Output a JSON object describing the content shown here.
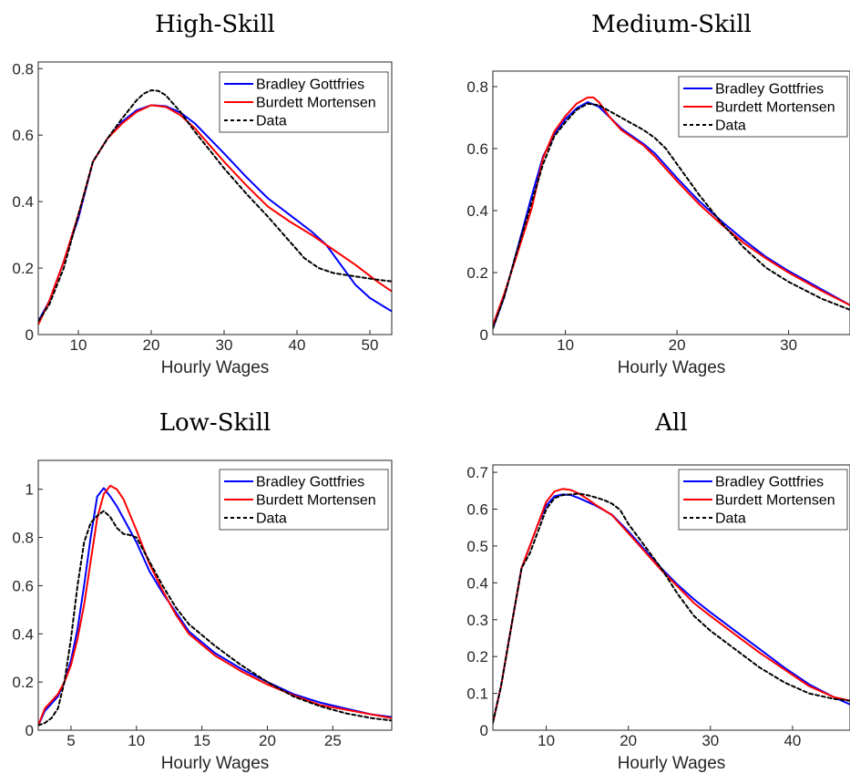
{
  "chart_data": [
    {
      "type": "line",
      "title": "High-Skill",
      "xlabel": "Hourly Wages",
      "ylabel": "",
      "xlim": [
        4.5,
        53
      ],
      "ylim": [
        0,
        0.82
      ],
      "xticks": [
        10,
        20,
        30,
        40,
        50
      ],
      "yticks": [
        0,
        0.2,
        0.4,
        0.6,
        0.8
      ],
      "xtick_labels": [
        "10",
        "20",
        "30",
        "40",
        "50"
      ],
      "ytick_labels": [
        "0",
        "0.2",
        "0.4",
        "0.6",
        "0.8"
      ],
      "legend_position": "top-right",
      "series": [
        {
          "name": "Bradley Gottfries",
          "color": "#0000ff",
          "style": "solid",
          "x": [
            4.5,
            6,
            8,
            10,
            12,
            14,
            16,
            18,
            20,
            22,
            24,
            26,
            28,
            30,
            33,
            36,
            39,
            42,
            44,
            46,
            48,
            50,
            53
          ],
          "y": [
            0.04,
            0.1,
            0.22,
            0.35,
            0.52,
            0.59,
            0.64,
            0.675,
            0.69,
            0.687,
            0.668,
            0.635,
            0.59,
            0.545,
            0.475,
            0.41,
            0.36,
            0.31,
            0.27,
            0.21,
            0.15,
            0.11,
            0.07
          ]
        },
        {
          "name": "Burdett Mortensen",
          "color": "#ff0000",
          "style": "solid",
          "x": [
            4.5,
            6,
            8,
            10,
            12,
            14,
            16,
            18,
            20,
            22,
            24,
            26,
            28,
            30,
            33,
            36,
            39,
            42,
            45,
            48,
            51,
            53
          ],
          "y": [
            0.03,
            0.1,
            0.22,
            0.36,
            0.52,
            0.59,
            0.635,
            0.67,
            0.69,
            0.685,
            0.66,
            0.62,
            0.57,
            0.52,
            0.45,
            0.385,
            0.34,
            0.3,
            0.255,
            0.21,
            0.16,
            0.13
          ]
        },
        {
          "name": "Data",
          "color": "#000000",
          "style": "dashed",
          "x": [
            4.5,
            6,
            8,
            10,
            12,
            14,
            16,
            18,
            19,
            20,
            21,
            22,
            24,
            26,
            28,
            30,
            33,
            36,
            39,
            41,
            43,
            45,
            48,
            51,
            53
          ],
          "y": [
            0.04,
            0.09,
            0.2,
            0.36,
            0.52,
            0.59,
            0.65,
            0.705,
            0.725,
            0.735,
            0.733,
            0.72,
            0.67,
            0.61,
            0.555,
            0.5,
            0.425,
            0.355,
            0.28,
            0.23,
            0.2,
            0.185,
            0.175,
            0.165,
            0.16
          ]
        }
      ]
    },
    {
      "type": "line",
      "title": "Medium-Skill",
      "xlabel": "Hourly Wages",
      "ylabel": "",
      "xlim": [
        3.5,
        35.5
      ],
      "ylim": [
        0,
        0.85
      ],
      "xticks": [
        10,
        20,
        30
      ],
      "yticks": [
        0,
        0.2,
        0.4,
        0.6,
        0.8
      ],
      "xtick_labels": [
        "10",
        "20",
        "30"
      ],
      "ytick_labels": [
        "0",
        "0.2",
        "0.4",
        "0.6",
        "0.8"
      ],
      "legend_position": "top-right",
      "series": [
        {
          "name": "Bradley Gottfries",
          "color": "#0000ff",
          "style": "solid",
          "x": [
            3.5,
            4.5,
            5.5,
            7,
            8,
            9,
            10,
            11,
            12,
            13,
            14,
            15,
            16,
            17,
            18,
            20,
            22,
            24,
            26,
            28,
            30,
            33,
            35.5
          ],
          "y": [
            0.02,
            0.12,
            0.25,
            0.45,
            0.575,
            0.645,
            0.695,
            0.73,
            0.75,
            0.735,
            0.7,
            0.665,
            0.64,
            0.615,
            0.585,
            0.505,
            0.43,
            0.365,
            0.305,
            0.25,
            0.205,
            0.145,
            0.095
          ]
        },
        {
          "name": "Burdett Mortensen",
          "color": "#ff0000",
          "style": "solid",
          "x": [
            3.5,
            4.5,
            5.5,
            7,
            8,
            9,
            10,
            11,
            12,
            12.5,
            13,
            14,
            15,
            16,
            17,
            18,
            20,
            22,
            24,
            26,
            28,
            30,
            33,
            35.5
          ],
          "y": [
            0.03,
            0.13,
            0.24,
            0.41,
            0.57,
            0.655,
            0.705,
            0.745,
            0.765,
            0.765,
            0.75,
            0.7,
            0.66,
            0.635,
            0.61,
            0.575,
            0.495,
            0.42,
            0.355,
            0.295,
            0.245,
            0.2,
            0.14,
            0.095
          ]
        },
        {
          "name": "Data",
          "color": "#000000",
          "style": "dashed",
          "x": [
            3.5,
            4.5,
            5.5,
            7,
            8,
            9,
            10,
            11,
            12,
            13,
            14,
            15,
            16,
            17,
            18,
            19,
            20,
            22,
            24,
            26,
            28,
            30,
            33,
            35.5
          ],
          "y": [
            0.02,
            0.12,
            0.25,
            0.43,
            0.55,
            0.64,
            0.685,
            0.725,
            0.745,
            0.74,
            0.72,
            0.7,
            0.68,
            0.66,
            0.635,
            0.6,
            0.55,
            0.45,
            0.36,
            0.28,
            0.215,
            0.17,
            0.115,
            0.08
          ]
        }
      ]
    },
    {
      "type": "line",
      "title": "Low-Skill",
      "xlabel": "Hourly Wages",
      "ylabel": "",
      "xlim": [
        2.5,
        29.5
      ],
      "ylim": [
        0,
        1.12
      ],
      "xticks": [
        5,
        10,
        15,
        20,
        25
      ],
      "yticks": [
        0,
        0.2,
        0.4,
        0.6,
        0.8,
        1
      ],
      "xtick_labels": [
        "5",
        "10",
        "15",
        "20",
        "25"
      ],
      "ytick_labels": [
        "0",
        "0.2",
        "0.4",
        "0.6",
        "0.8",
        "1"
      ],
      "legend_position": "top-right",
      "series": [
        {
          "name": "Bradley Gottfries",
          "color": "#0000ff",
          "style": "solid",
          "x": [
            2.5,
            3,
            3.5,
            4,
            4.5,
            5,
            5.5,
            6,
            6.5,
            7,
            7.5,
            8,
            8.5,
            9,
            10,
            11,
            12,
            13,
            14,
            16,
            18,
            20,
            22,
            24,
            26,
            28,
            29.5
          ],
          "y": [
            0.02,
            0.08,
            0.11,
            0.14,
            0.2,
            0.29,
            0.42,
            0.6,
            0.8,
            0.97,
            1.005,
            0.97,
            0.93,
            0.88,
            0.78,
            0.66,
            0.57,
            0.49,
            0.41,
            0.32,
            0.255,
            0.2,
            0.15,
            0.115,
            0.09,
            0.065,
            0.055
          ]
        },
        {
          "name": "Burdett Mortensen",
          "color": "#ff0000",
          "style": "solid",
          "x": [
            2.5,
            3,
            3.5,
            4,
            4.5,
            5,
            5.5,
            6,
            6.5,
            7,
            7.5,
            8,
            8.5,
            9,
            10,
            11,
            12,
            13,
            14,
            16,
            18,
            20,
            22,
            24,
            26,
            28,
            29.5
          ],
          "y": [
            0.02,
            0.09,
            0.12,
            0.15,
            0.2,
            0.27,
            0.38,
            0.52,
            0.7,
            0.88,
            0.98,
            1.015,
            1.0,
            0.96,
            0.83,
            0.69,
            0.58,
            0.48,
            0.4,
            0.31,
            0.245,
            0.19,
            0.145,
            0.105,
            0.085,
            0.065,
            0.05
          ]
        },
        {
          "name": "Data",
          "color": "#000000",
          "style": "dashed",
          "x": [
            2.5,
            3,
            3.5,
            4,
            4.5,
            5,
            5.5,
            6,
            6.5,
            7,
            7.5,
            8,
            8.5,
            9,
            9.5,
            10,
            11,
            12,
            13,
            14,
            16,
            18,
            20,
            22,
            24,
            26,
            28,
            29.5
          ],
          "y": [
            0.02,
            0.03,
            0.05,
            0.09,
            0.2,
            0.38,
            0.6,
            0.78,
            0.86,
            0.89,
            0.91,
            0.885,
            0.84,
            0.815,
            0.81,
            0.8,
            0.7,
            0.6,
            0.51,
            0.44,
            0.35,
            0.27,
            0.2,
            0.14,
            0.1,
            0.07,
            0.05,
            0.04
          ]
        }
      ]
    },
    {
      "type": "line",
      "title": "All",
      "xlabel": "Hourly Wages",
      "ylabel": "",
      "xlim": [
        3.5,
        47
      ],
      "ylim": [
        0,
        0.72
      ],
      "xticks": [
        10,
        20,
        30,
        40
      ],
      "yticks": [
        0,
        0.1,
        0.2,
        0.3,
        0.4,
        0.5,
        0.6,
        0.7
      ],
      "xtick_labels": [
        "10",
        "20",
        "30",
        "40"
      ],
      "ytick_labels": [
        "0",
        "0.1",
        "0.2",
        "0.3",
        "0.4",
        "0.5",
        "0.6",
        "0.7"
      ],
      "legend_position": "top-right",
      "series": [
        {
          "name": "Bradley Gottfries",
          "color": "#0000ff",
          "style": "solid",
          "x": [
            3.5,
            4.5,
            5.5,
            7,
            8,
            9,
            10,
            11,
            12,
            13,
            14,
            15,
            16,
            18,
            20,
            22,
            24,
            26,
            28,
            30,
            33,
            36,
            39,
            42,
            45,
            47
          ],
          "y": [
            0.02,
            0.12,
            0.25,
            0.44,
            0.5,
            0.56,
            0.61,
            0.635,
            0.64,
            0.638,
            0.63,
            0.62,
            0.61,
            0.585,
            0.54,
            0.49,
            0.44,
            0.395,
            0.355,
            0.32,
            0.27,
            0.22,
            0.17,
            0.125,
            0.09,
            0.07
          ]
        },
        {
          "name": "Burdett Mortensen",
          "color": "#ff0000",
          "style": "solid",
          "x": [
            3.5,
            4.5,
            5.5,
            7,
            8,
            9,
            10,
            11,
            12,
            13,
            14,
            15,
            16,
            18,
            20,
            22,
            24,
            26,
            28,
            30,
            33,
            36,
            39,
            42,
            45,
            47
          ],
          "y": [
            0.02,
            0.12,
            0.25,
            0.44,
            0.5,
            0.56,
            0.62,
            0.648,
            0.655,
            0.652,
            0.642,
            0.628,
            0.612,
            0.584,
            0.535,
            0.485,
            0.435,
            0.39,
            0.345,
            0.31,
            0.26,
            0.21,
            0.165,
            0.12,
            0.09,
            0.08
          ]
        },
        {
          "name": "Data",
          "color": "#000000",
          "style": "dashed",
          "x": [
            3.5,
            4.5,
            5.5,
            7,
            8,
            9,
            10,
            11,
            12,
            13,
            14,
            15,
            16,
            17,
            18,
            19,
            20,
            22,
            24,
            26,
            28,
            30,
            33,
            36,
            39,
            42,
            45,
            47
          ],
          "y": [
            0.02,
            0.12,
            0.25,
            0.44,
            0.48,
            0.54,
            0.6,
            0.63,
            0.638,
            0.64,
            0.642,
            0.638,
            0.632,
            0.625,
            0.615,
            0.598,
            0.56,
            0.5,
            0.44,
            0.37,
            0.31,
            0.27,
            0.22,
            0.17,
            0.13,
            0.1,
            0.085,
            0.08
          ]
        }
      ]
    }
  ]
}
